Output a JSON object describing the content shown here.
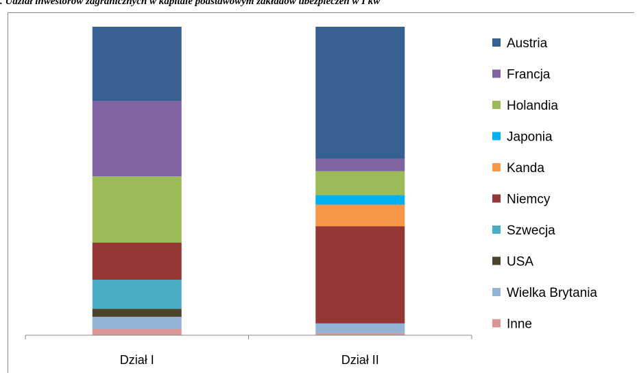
{
  "title": ". Udział inwestorów zagranicznych w kapitale podstawowym zakładów ubezpieczeń w I kw",
  "chart_data": {
    "type": "bar",
    "stacked": true,
    "percent_stacked": true,
    "categories": [
      "Dział I",
      "Dział II"
    ],
    "series": [
      {
        "name": "Austria",
        "color": "#376092",
        "values": [
          24.0,
          40.2
        ]
      },
      {
        "name": "Francja",
        "color": "#8064A2",
        "values": [
          24.5,
          3.8
        ]
      },
      {
        "name": "Holandia",
        "color": "#9BBB59",
        "values": [
          21.5,
          7.3
        ]
      },
      {
        "name": "Japonia",
        "color": "#00B0F0",
        "values": [
          0.0,
          2.9
        ]
      },
      {
        "name": "Kanda",
        "color": "#F79646",
        "values": [
          0.0,
          6.6
        ]
      },
      {
        "name": "Niemcy",
        "color": "#953735",
        "values": [
          12.0,
          29.6
        ]
      },
      {
        "name": "Szwecja",
        "color": "#4BACC6",
        "values": [
          9.4,
          0.0
        ]
      },
      {
        "name": "USA",
        "color": "#4A452A",
        "values": [
          2.6,
          0.0
        ]
      },
      {
        "name": "Wielka Brytania",
        "color": "#95B3D7",
        "values": [
          4.0,
          2.9
        ]
      },
      {
        "name": "Inne",
        "color": "#D99694",
        "values": [
          2.0,
          0.7
        ]
      }
    ],
    "ylim": [
      0,
      100
    ],
    "grid": false,
    "legend_position": "right"
  }
}
